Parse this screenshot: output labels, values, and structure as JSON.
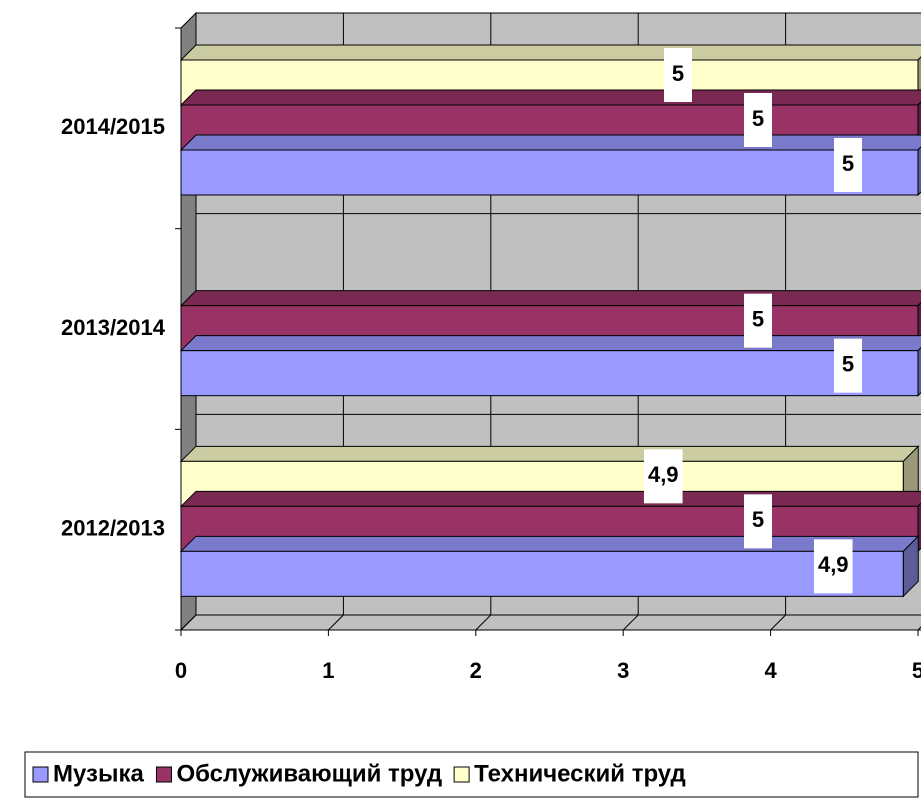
{
  "chart_data": {
    "type": "bar",
    "orientation": "horizontal",
    "categories": [
      "2012/2013",
      "2013/2014",
      "2014/2015"
    ],
    "series": [
      {
        "name": "Музыка",
        "color": "#9999ff",
        "values": [
          4.9,
          5,
          5
        ],
        "value_labels": [
          "4,9",
          "5",
          "5"
        ]
      },
      {
        "name": "Обслуживающий труд",
        "color": "#993366",
        "values": [
          5,
          5,
          5
        ],
        "value_labels": [
          "5",
          "5",
          "5"
        ]
      },
      {
        "name": "Технический труд",
        "color": "#ffffcc",
        "values": [
          4.9,
          null,
          5
        ],
        "value_labels": [
          "4,9",
          null,
          "5"
        ]
      }
    ],
    "xlim": [
      0,
      5
    ],
    "xticks": [
      0,
      1,
      2,
      3,
      4,
      5
    ],
    "grid": true,
    "legend": "bottom"
  }
}
